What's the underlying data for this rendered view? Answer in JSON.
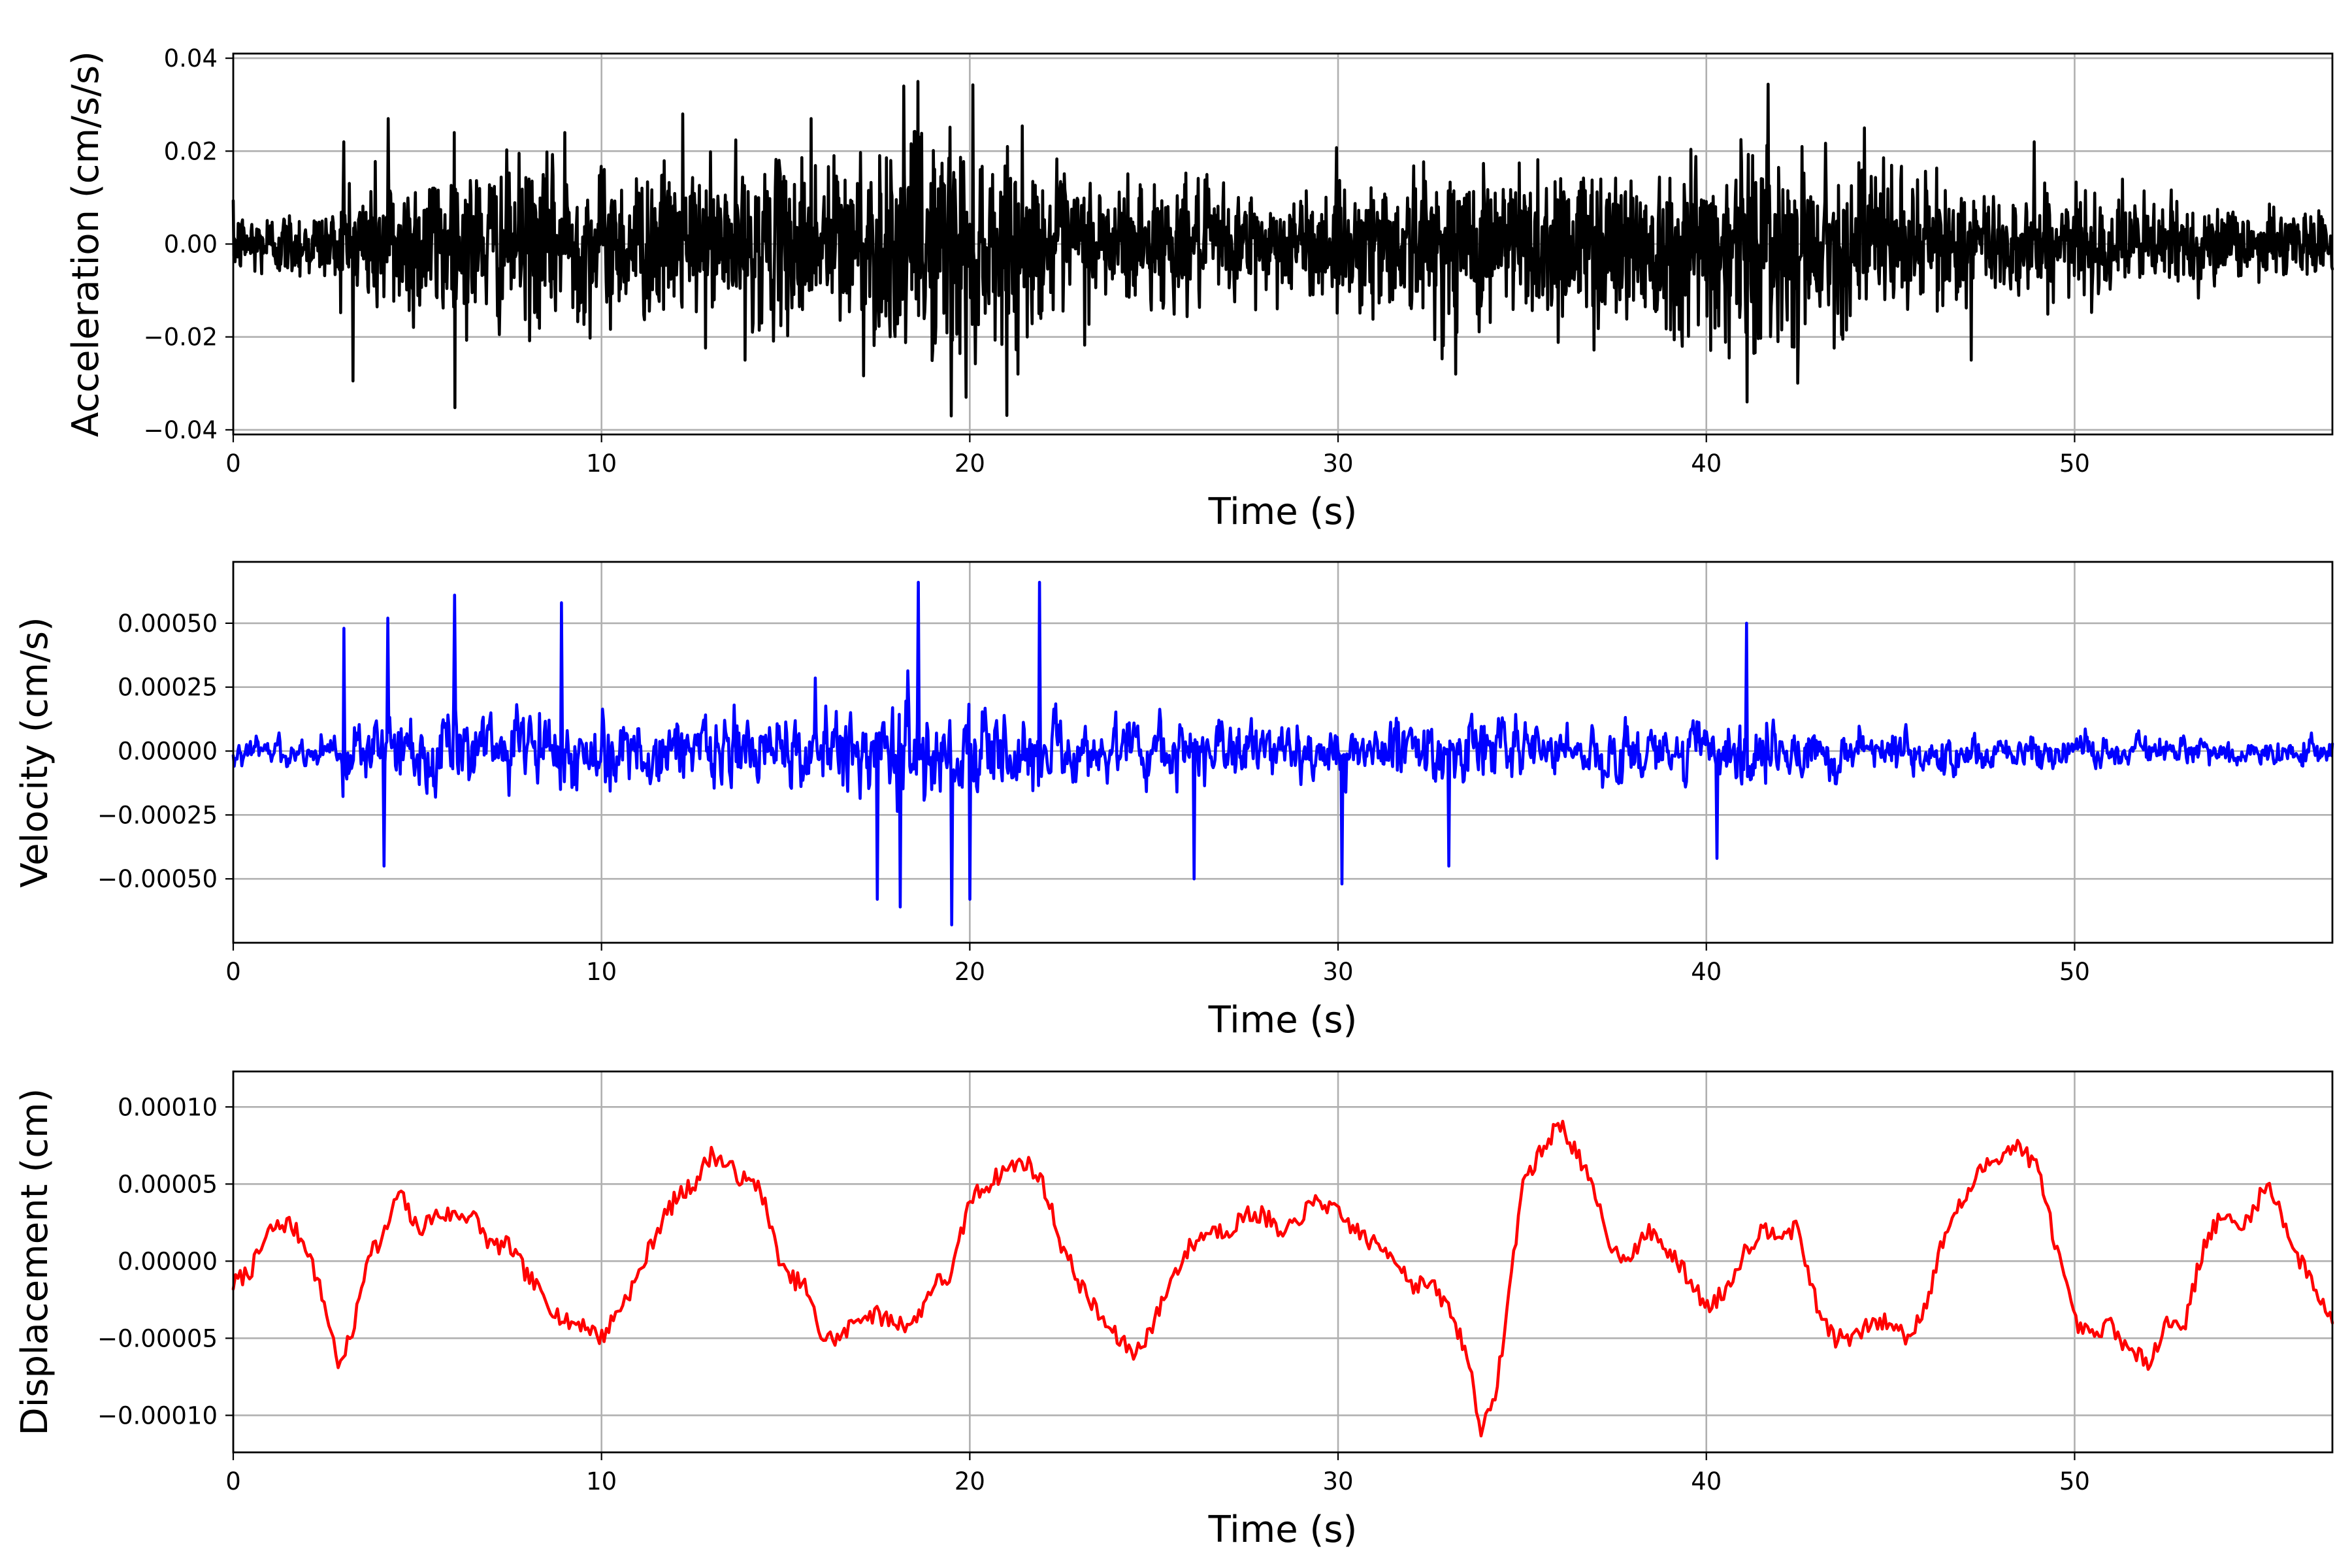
{
  "chart_data": [
    {
      "type": "line",
      "xlabel": "Time (s)",
      "ylabel": "Acceleration (cm/s/s)",
      "xlim": [
        0,
        57
      ],
      "ylim": [
        -0.041,
        0.041
      ],
      "grid": true,
      "xticks": [
        0,
        10,
        20,
        30,
        40,
        50
      ],
      "xtick_labels": [
        "0",
        "10",
        "20",
        "30",
        "40",
        "50"
      ],
      "yticks": [
        0.04,
        0.02,
        0.0,
        -0.02,
        -0.04
      ],
      "ytick_labels": [
        "0.04",
        "0.02",
        "0.00",
        "−0.02",
        "−0.04"
      ],
      "series": [
        {
          "color": "#000000",
          "envelope": [
            [
              0,
              0.008
            ],
            [
              2.8,
              0.009
            ],
            [
              3,
              0.017
            ],
            [
              5,
              0.02
            ],
            [
              8,
              0.02
            ],
            [
              12,
              0.018
            ],
            [
              15,
              0.02
            ],
            [
              18.7,
              0.028
            ],
            [
              19.5,
              0.03
            ],
            [
              22,
              0.018
            ],
            [
              25,
              0.016
            ],
            [
              28,
              0.013
            ],
            [
              29,
              0.012
            ],
            [
              31,
              0.017
            ],
            [
              35,
              0.021
            ],
            [
              38,
              0.02
            ],
            [
              40,
              0.023
            ],
            [
              41.1,
              0.028
            ],
            [
              43,
              0.02
            ],
            [
              44,
              0.02
            ],
            [
              47,
              0.014
            ],
            [
              50,
              0.012
            ],
            [
              53,
              0.011
            ],
            [
              55,
              0.008
            ],
            [
              57,
              0.008
            ]
          ],
          "peaks": [
            [
              3.0,
              0.022
            ],
            [
              4.2,
              0.027
            ],
            [
              6.0,
              0.024
            ],
            [
              9.0,
              0.024
            ],
            [
              12.2,
              0.028
            ],
            [
              15.7,
              0.027
            ],
            [
              18.6,
              0.035
            ],
            [
              19.5,
              -0.037
            ],
            [
              19.9,
              -0.033
            ],
            [
              21.3,
              -0.028
            ],
            [
              13.9,
              -0.025
            ],
            [
              33.2,
              -0.028
            ],
            [
              41.1,
              0.031
            ],
            [
              41.1,
              -0.034
            ],
            [
              44.3,
              0.025
            ],
            [
              47.2,
              -0.025
            ],
            [
              48.9,
              0.022
            ]
          ]
        }
      ]
    },
    {
      "type": "line",
      "xlabel": "Time (s)",
      "ylabel": "Velocity (cm/s)",
      "xlim": [
        0,
        57
      ],
      "ylim": [
        -0.00075,
        0.00074
      ],
      "grid": true,
      "xticks": [
        0,
        10,
        20,
        30,
        40,
        50
      ],
      "xtick_labels": [
        "0",
        "10",
        "20",
        "30",
        "40",
        "50"
      ],
      "yticks": [
        0.0005,
        0.00025,
        0.0,
        -0.00025,
        -0.0005
      ],
      "ytick_labels": [
        "0.00050",
        "0.00025",
        "0.00000",
        "−0.00025",
        "−0.00050"
      ],
      "series": [
        {
          "color": "#0000ff",
          "envelope": [
            [
              0,
              0.0001
            ],
            [
              2.8,
              0.00012
            ],
            [
              3,
              0.00025
            ],
            [
              6,
              0.0003
            ],
            [
              10,
              0.00028
            ],
            [
              14,
              0.00027
            ],
            [
              17.5,
              0.00033
            ],
            [
              19.5,
              0.00036
            ],
            [
              22,
              0.00025
            ],
            [
              26,
              0.00022
            ],
            [
              29,
              0.00018
            ],
            [
              31,
              0.00023
            ],
            [
              35,
              0.00023
            ],
            [
              38,
              0.0002
            ],
            [
              41,
              0.00024
            ],
            [
              44,
              0.00023
            ],
            [
              45,
              0.00015
            ],
            [
              50,
              0.00011
            ],
            [
              57,
              0.0001
            ]
          ],
          "peaks": [
            [
              3.0,
              0.00048
            ],
            [
              4.2,
              0.00052
            ],
            [
              6.0,
              0.00061
            ],
            [
              8.9,
              0.00058
            ],
            [
              18.6,
              0.00066
            ],
            [
              21.9,
              0.00066
            ],
            [
              17.5,
              -0.00058
            ],
            [
              18.1,
              -0.00061
            ],
            [
              19.5,
              -0.00068
            ],
            [
              20.0,
              -0.00058
            ],
            [
              26.1,
              -0.0005
            ],
            [
              30.1,
              -0.00052
            ],
            [
              41.1,
              0.0005
            ],
            [
              4.1,
              -0.00045
            ],
            [
              33.0,
              -0.00045
            ],
            [
              40.3,
              -0.00042
            ]
          ]
        }
      ]
    },
    {
      "type": "line",
      "xlabel": "Time (s)",
      "ylabel": "Displacement (cm)",
      "xlim": [
        0,
        57
      ],
      "ylim": [
        -0.000124,
        0.000123
      ],
      "grid": true,
      "xticks": [
        0,
        10,
        20,
        30,
        40,
        50
      ],
      "xtick_labels": [
        "0",
        "10",
        "20",
        "30",
        "40",
        "50"
      ],
      "yticks": [
        0.0001,
        5e-05,
        0.0,
        -5e-05,
        -0.0001
      ],
      "ytick_labels": [
        "0.00010",
        "0.00005",
        "0.00000",
        "−0.00005",
        "−0.00010"
      ],
      "series": [
        {
          "color": "#ff0000",
          "points": [
            [
              0,
              -1.5e-05
            ],
            [
              0.5,
              -5e-06
            ],
            [
              1.0,
              2e-05
            ],
            [
              1.5,
              2.5e-05
            ],
            [
              2.0,
              1e-05
            ],
            [
              2.5,
              -3e-05
            ],
            [
              2.9,
              -7e-05
            ],
            [
              3.3,
              -4e-05
            ],
            [
              3.7,
              1e-05
            ],
            [
              4.0,
              1e-05
            ],
            [
              4.5,
              4.5e-05
            ],
            [
              5.0,
              2e-05
            ],
            [
              5.5,
              3e-05
            ],
            [
              6.0,
              3e-05
            ],
            [
              6.5,
              3e-05
            ],
            [
              7.0,
              1e-05
            ],
            [
              7.5,
              1e-05
            ],
            [
              8.0,
              -1e-05
            ],
            [
              8.5,
              -2.5e-05
            ],
            [
              9.0,
              -4e-05
            ],
            [
              9.5,
              -4e-05
            ],
            [
              10.0,
              -5e-05
            ],
            [
              10.5,
              -3e-05
            ],
            [
              11.0,
              -1e-05
            ],
            [
              11.5,
              2e-05
            ],
            [
              12.0,
              4e-05
            ],
            [
              12.5,
              5e-05
            ],
            [
              13.0,
              7e-05
            ],
            [
              13.5,
              6e-05
            ],
            [
              14.0,
              5e-05
            ],
            [
              14.3,
              5e-05
            ],
            [
              14.6,
              2e-05
            ],
            [
              15.0,
              -1e-05
            ],
            [
              15.5,
              -1.5e-05
            ],
            [
              16.0,
              -5e-05
            ],
            [
              16.5,
              -5e-05
            ],
            [
              17.0,
              -3.5e-05
            ],
            [
              17.5,
              -3.5e-05
            ],
            [
              18.0,
              -4e-05
            ],
            [
              18.5,
              -4e-05
            ],
            [
              19.0,
              -1.5e-05
            ],
            [
              19.5,
              -1e-05
            ],
            [
              20.0,
              4e-05
            ],
            [
              20.5,
              5e-05
            ],
            [
              21.0,
              6e-05
            ],
            [
              21.5,
              6.5e-05
            ],
            [
              22.0,
              5e-05
            ],
            [
              22.5,
              1e-05
            ],
            [
              23.0,
              -1.5e-05
            ],
            [
              23.5,
              -3.5e-05
            ],
            [
              24.0,
              -5e-05
            ],
            [
              24.5,
              -6e-05
            ],
            [
              25.0,
              -4e-05
            ],
            [
              25.5,
              -1e-05
            ],
            [
              26.0,
              1e-05
            ],
            [
              26.5,
              2e-05
            ],
            [
              27.0,
              2e-05
            ],
            [
              27.5,
              3e-05
            ],
            [
              28.0,
              3e-05
            ],
            [
              28.5,
              1.5e-05
            ],
            [
              29.0,
              3e-05
            ],
            [
              29.5,
              4e-05
            ],
            [
              30.0,
              3e-05
            ],
            [
              30.5,
              2e-05
            ],
            [
              31.0,
              1e-05
            ],
            [
              31.5,
              5e-06
            ],
            [
              32.0,
              -1.5e-05
            ],
            [
              32.5,
              -1.5e-05
            ],
            [
              33.0,
              -3e-05
            ],
            [
              33.5,
              -6e-05
            ],
            [
              33.9,
              -0.00011
            ],
            [
              34.2,
              -9.5e-05
            ],
            [
              34.5,
              -5e-05
            ],
            [
              35.0,
              5e-05
            ],
            [
              35.5,
              7e-05
            ],
            [
              36.0,
              9e-05
            ],
            [
              36.5,
              7e-05
            ],
            [
              37.0,
              4e-05
            ],
            [
              37.5,
              5e-06
            ],
            [
              38.0,
              5e-06
            ],
            [
              38.5,
              2e-05
            ],
            [
              39.0,
              5e-06
            ],
            [
              39.5,
              -1e-05
            ],
            [
              40.0,
              -3e-05
            ],
            [
              40.5,
              -2e-05
            ],
            [
              41.0,
              5e-06
            ],
            [
              41.5,
              2e-05
            ],
            [
              42.0,
              2e-05
            ],
            [
              42.5,
              2e-05
            ],
            [
              43.0,
              -3e-05
            ],
            [
              43.5,
              -5e-05
            ],
            [
              44.0,
              -5e-05
            ],
            [
              44.5,
              -4e-05
            ],
            [
              45.0,
              -4e-05
            ],
            [
              45.5,
              -5e-05
            ],
            [
              46.0,
              -2.5e-05
            ],
            [
              46.5,
              2e-05
            ],
            [
              47.0,
              4e-05
            ],
            [
              47.5,
              6e-05
            ],
            [
              48.0,
              7e-05
            ],
            [
              48.5,
              7.5e-05
            ],
            [
              49.0,
              6e-05
            ],
            [
              49.5,
              1e-05
            ],
            [
              50.0,
              -4e-05
            ],
            [
              50.5,
              -5e-05
            ],
            [
              51.0,
              -4e-05
            ],
            [
              51.5,
              -6e-05
            ],
            [
              52.0,
              -6.5e-05
            ],
            [
              52.5,
              -4e-05
            ],
            [
              53.0,
              -4e-05
            ],
            [
              53.5,
              1e-05
            ],
            [
              54.0,
              3e-05
            ],
            [
              54.5,
              2e-05
            ],
            [
              55.0,
              4e-05
            ],
            [
              55.3,
              5e-05
            ],
            [
              55.7,
              2.5e-05
            ],
            [
              56.0,
              5e-06
            ],
            [
              56.5,
              -1.5e-05
            ],
            [
              57.0,
              -4e-05
            ]
          ]
        }
      ]
    }
  ]
}
